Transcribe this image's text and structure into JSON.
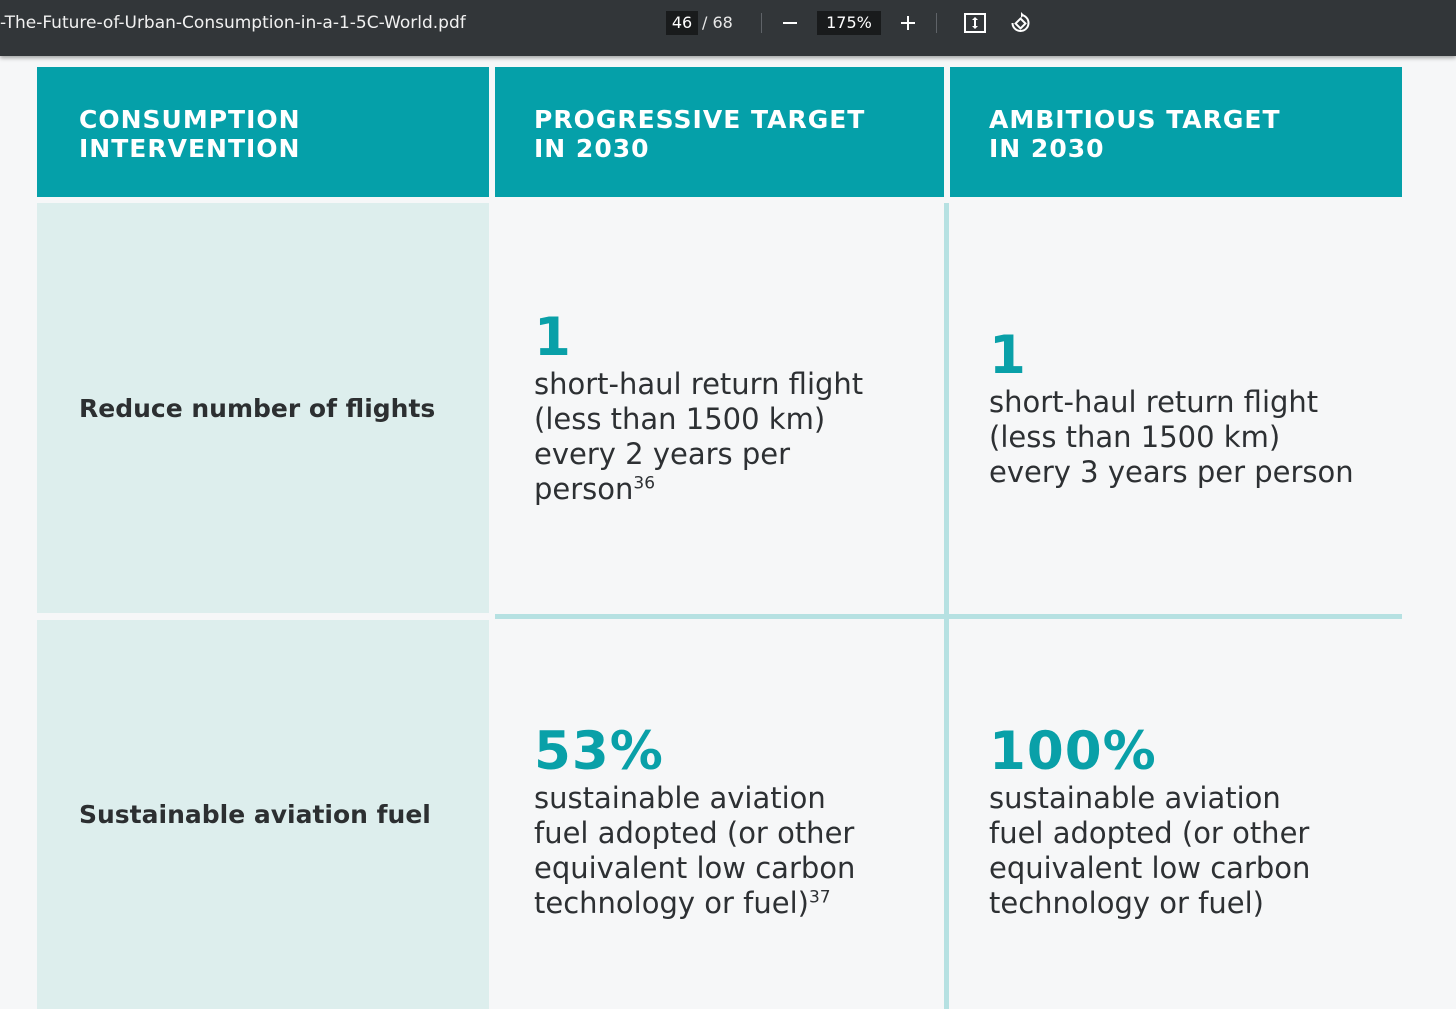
{
  "toolbar": {
    "title": "-The-Future-of-Urban-Consumption-in-a-1-5C-World.pdf",
    "current_page": "46",
    "total_pages": "/ 68",
    "zoom": "175%",
    "icons": [
      "zoom-out-icon",
      "zoom-in-icon",
      "fit-page-icon",
      "rotate-icon"
    ]
  },
  "table": {
    "headers": {
      "col1": "CONSUMPTION\nINTERVENTION",
      "col2": "PROGRESSIVE TARGET\nIN 2030",
      "col3": "AMBITIOUS TARGET\nIN 2030"
    },
    "rows": [
      {
        "label": "Reduce number of flights",
        "progressive_value": "1",
        "progressive_text": "short-haul return flight (less than 1500 km) every 2 years per person",
        "progressive_footnote": "36",
        "ambitious_value": "1",
        "ambitious_text": "short-haul return flight (less than 1500 km) every 3 years per person"
      },
      {
        "label": "Sustainable aviation fuel",
        "progressive_value": "53%",
        "progressive_text": "sustainable aviation fuel adopted (or other equivalent low carbon technology or fuel)",
        "progressive_footnote": "37",
        "ambitious_value": "100%",
        "ambitious_text": "sustainable aviation fuel adopted (or other equivalent low carbon technology or fuel)"
      }
    ]
  },
  "colors": {
    "header_bg": "#05a0a9",
    "label_bg": "#ddeeed",
    "accent": "#09a0a8",
    "toolbar_bg": "#323639",
    "grid_line": "#b6e1e2"
  }
}
